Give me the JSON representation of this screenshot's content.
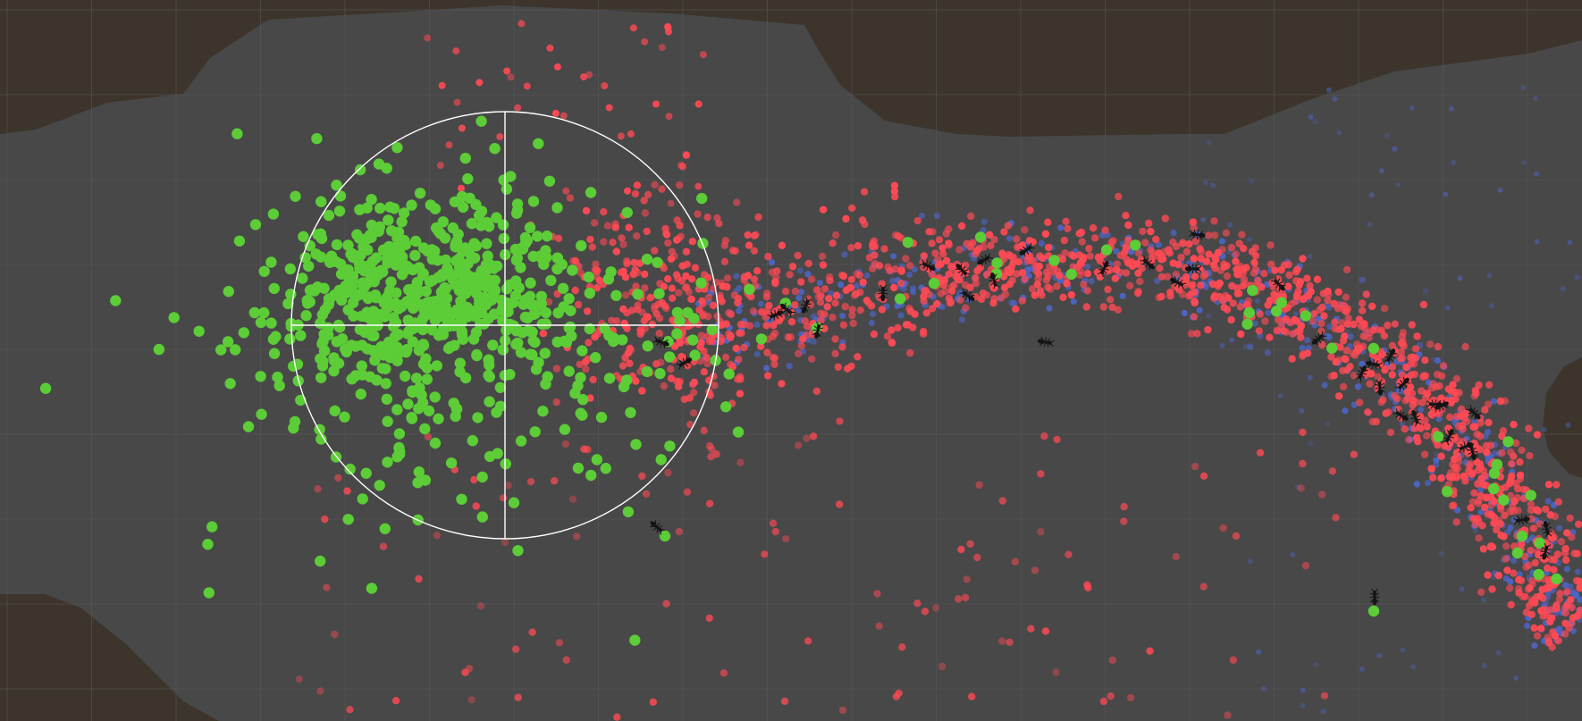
{
  "scene": {
    "terrain_color": "#3d342b",
    "floor_color": "#484848",
    "grid_color": "#5a5a5a",
    "gizmo_color": "#ffffff"
  },
  "particles": {
    "food_color": "#5ccc37",
    "home_pheromone_color": "#ff4a55",
    "food_pheromone_color": "#4d66c8",
    "ant_color": "#141414"
  }
}
